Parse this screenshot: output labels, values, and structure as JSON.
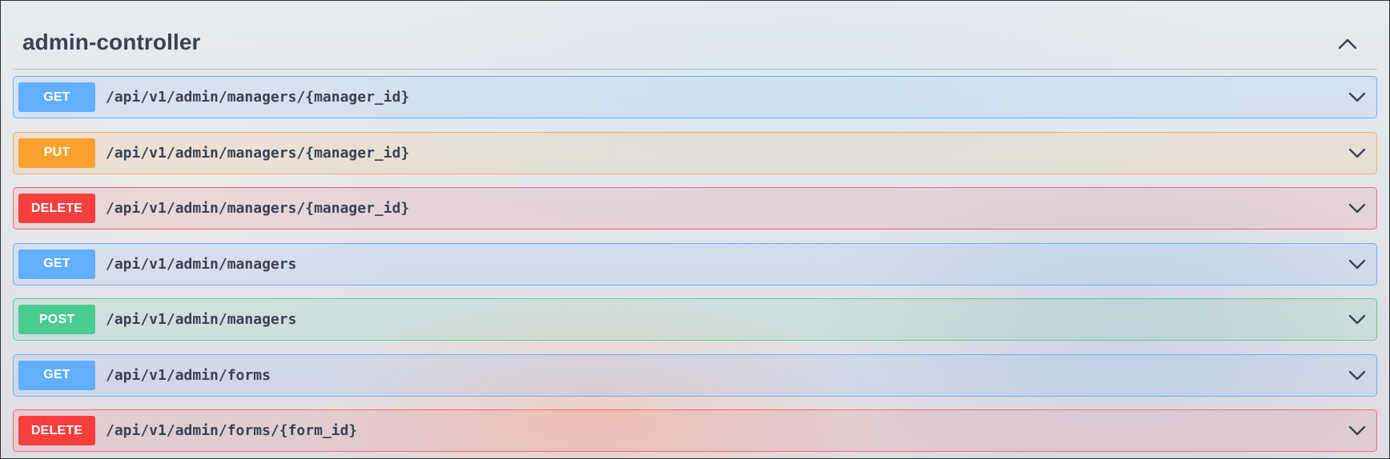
{
  "section": {
    "title": "admin-controller",
    "collapse_icon": "chevron-up-icon"
  },
  "operations": [
    {
      "method": "GET",
      "path": "/api/v1/admin/managers/{manager_id}",
      "method_color": "#61affe",
      "expand_icon": "chevron-down-icon"
    },
    {
      "method": "PUT",
      "path": "/api/v1/admin/managers/{manager_id}",
      "method_color": "#fca130",
      "expand_icon": "chevron-down-icon"
    },
    {
      "method": "DELETE",
      "path": "/api/v1/admin/managers/{manager_id}",
      "method_color": "#f93e3e",
      "expand_icon": "chevron-down-icon"
    },
    {
      "method": "GET",
      "path": "/api/v1/admin/managers",
      "method_color": "#61affe",
      "expand_icon": "chevron-down-icon"
    },
    {
      "method": "POST",
      "path": "/api/v1/admin/managers",
      "method_color": "#49cc90",
      "expand_icon": "chevron-down-icon"
    },
    {
      "method": "GET",
      "path": "/api/v1/admin/forms",
      "method_color": "#61affe",
      "expand_icon": "chevron-down-icon"
    },
    {
      "method": "DELETE",
      "path": "/api/v1/admin/forms/{form_id}",
      "method_color": "#f93e3e",
      "expand_icon": "chevron-down-icon"
    }
  ]
}
